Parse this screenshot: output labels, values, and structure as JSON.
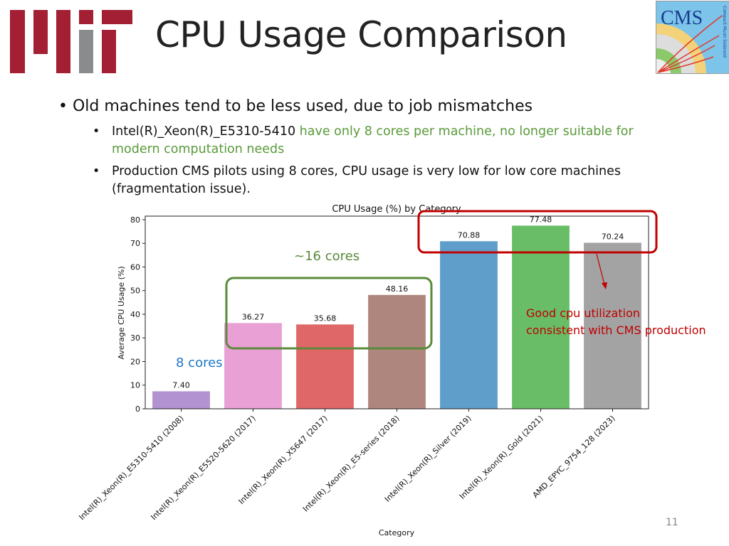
{
  "slide": {
    "title": "CPU Usage Comparison",
    "page_number": "11",
    "logos": {
      "left": "MIT",
      "right": "CMS",
      "right_subtitle": "Compact Muon Solenoid"
    },
    "bullets": [
      {
        "text": "Old machines tend to be less used, due to job mismatches"
      },
      {
        "lead": "Intel(R)_Xeon(R)_E5310-5410",
        "rest": " have only 8 cores per machine, no longer suitable for modern computation needs"
      },
      {
        "text": "Production CMS pilots using 8 cores, CPU usage is very low for low core machines (fragmentation issue)."
      }
    ],
    "annotations": {
      "cores16": "~16 cores",
      "cores8": "8 cores",
      "good_line1": "Good cpu utilization",
      "good_line2": "consistent with CMS production"
    },
    "colors": {
      "accent_green": "#5a9a3a",
      "annotation_red": "#c00000",
      "annotation_blue": "#1f77c4",
      "mit_red": "#a31f34",
      "mit_grey": "#8a8b8c"
    }
  },
  "chart_data": {
    "type": "bar",
    "title": "CPU Usage (%) by Category",
    "xlabel": "Category",
    "ylabel": "Average CPU Usage (%)",
    "ylim": [
      0,
      81.5
    ],
    "yticks": [
      0,
      10,
      20,
      30,
      40,
      50,
      60,
      70,
      80
    ],
    "grid": false,
    "categories": [
      "Intel(R)_Xeon(R)_E5310-5410 (2008)",
      "Intel(R)_Xeon(R)_E5520-5620 (2017)",
      "Intel(R)_Xeon(R)_X5647 (2017)",
      "Intel(R)_Xeon(R)_E5-series (2018)",
      "Intel(R)_Xeon(R)_Silver (2019)",
      "Intel(R)_Xeon(R)_Gold (2021)",
      "AMD_EPYC_9754_128 (2023)"
    ],
    "values": [
      7.4,
      36.27,
      35.68,
      48.16,
      70.88,
      77.48,
      70.24
    ],
    "data_labels": [
      "7.40",
      "36.27",
      "35.68",
      "48.16",
      "70.88",
      "77.48",
      "70.24"
    ],
    "bar_colors": [
      "#b292d0",
      "#e9a0d4",
      "#e06767",
      "#ae867e",
      "#5f9ecb",
      "#69bd67",
      "#a3a3a3"
    ]
  }
}
